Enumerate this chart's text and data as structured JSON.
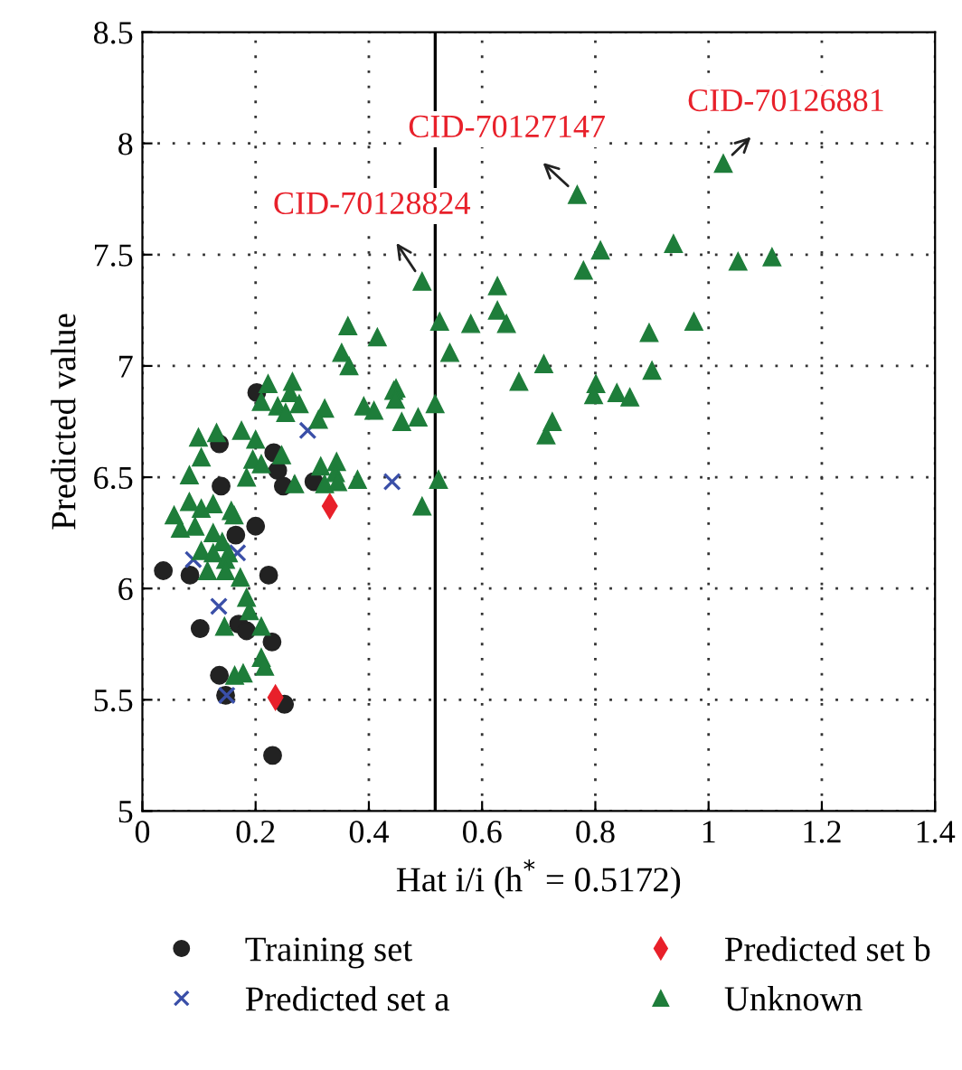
{
  "chart_data": {
    "type": "scatter",
    "xlabel": "Hat i/i (h$^{*}$ = 0.5172)",
    "ylabel": "Predicted value",
    "xlim": [
      0,
      1.4
    ],
    "xticks": [
      0,
      0.2,
      0.4,
      0.6,
      0.8,
      1,
      1.2,
      1.4
    ],
    "ylim": [
      5,
      8.5
    ],
    "yticks": [
      5,
      5.5,
      6,
      6.5,
      7,
      7.5,
      8,
      8.5
    ],
    "grid": true,
    "legend": "bottom",
    "ref_lines": [
      {
        "axis": "x",
        "value": 0.5172,
        "color": "#000000",
        "line_style": "solid"
      }
    ],
    "annotations": [
      {
        "text": "CID-70128824",
        "x": 0.494,
        "y": 7.38
      },
      {
        "text": "CID-70127147",
        "x": 0.768,
        "y": 7.77
      },
      {
        "text": "CID-70126881",
        "x": 1.026,
        "y": 7.91
      }
    ],
    "series": [
      {
        "name": "Training set",
        "color": "#222222",
        "marker": "circle",
        "x": [
          0.037,
          0.084,
          0.223,
          0.102,
          0.17,
          0.184,
          0.229,
          0.136,
          0.147,
          0.251,
          0.23,
          0.2,
          0.165,
          0.139,
          0.239,
          0.249,
          0.303,
          0.136,
          0.202,
          0.232
        ],
        "values": [
          6.08,
          6.06,
          6.06,
          5.82,
          5.84,
          5.81,
          5.76,
          5.61,
          5.52,
          5.48,
          5.25,
          6.28,
          6.24,
          6.46,
          6.53,
          6.46,
          6.48,
          6.65,
          6.88,
          6.61
        ]
      },
      {
        "name": "Predicted set a",
        "color": "#3a4fa8",
        "marker": "cross",
        "x": [
          0.09,
          0.168,
          0.135,
          0.149,
          0.292,
          0.441
        ],
        "values": [
          6.13,
          6.16,
          5.92,
          5.52,
          6.71,
          6.48
        ]
      },
      {
        "name": "Predicted set b",
        "color": "#e8202a",
        "marker": "diamond",
        "x": [
          0.331,
          0.235
        ],
        "values": [
          6.37,
          5.51
        ]
      },
      {
        "name": "Unknown",
        "color": "#1e7d3a",
        "marker": "triangle",
        "x": [
          1.026,
          0.768,
          0.494,
          0.809,
          0.938,
          0.779,
          1.052,
          1.112,
          0.627,
          0.363,
          0.415,
          0.352,
          0.365,
          0.525,
          0.543,
          0.58,
          0.627,
          0.643,
          0.895,
          0.974,
          0.709,
          0.9,
          0.448,
          0.665,
          0.222,
          0.265,
          0.801,
          0.797,
          0.838,
          0.861,
          0.517,
          0.724,
          0.713,
          0.523,
          0.494,
          0.261,
          0.21,
          0.239,
          0.277,
          0.253,
          0.322,
          0.444,
          0.447,
          0.391,
          0.409,
          0.458,
          0.487,
          0.311,
          0.175,
          0.2,
          0.246,
          0.195,
          0.21,
          0.184,
          0.315,
          0.343,
          0.341,
          0.322,
          0.345,
          0.38,
          0.269,
          0.162,
          0.173,
          0.184,
          0.189,
          0.21,
          0.21,
          0.216,
          0.178,
          0.104,
          0.083,
          0.056,
          0.067,
          0.083,
          0.104,
          0.125,
          0.157,
          0.093,
          0.125,
          0.141,
          0.104,
          0.125,
          0.152,
          0.147,
          0.115,
          0.147,
          0.145,
          0.163,
          0.099,
          0.131
        ],
        "values": [
          7.91,
          7.77,
          7.38,
          7.52,
          7.55,
          7.43,
          7.47,
          7.49,
          7.36,
          7.18,
          7.13,
          7.06,
          7.0,
          7.2,
          7.06,
          7.19,
          7.25,
          7.19,
          7.15,
          7.2,
          7.01,
          6.98,
          6.9,
          6.93,
          6.92,
          6.93,
          6.92,
          6.87,
          6.88,
          6.86,
          6.83,
          6.75,
          6.69,
          6.49,
          6.37,
          6.88,
          6.84,
          6.82,
          6.83,
          6.79,
          6.81,
          6.89,
          6.85,
          6.82,
          6.8,
          6.75,
          6.77,
          6.76,
          6.71,
          6.67,
          6.6,
          6.58,
          6.56,
          6.5,
          6.55,
          6.57,
          6.52,
          6.47,
          6.48,
          6.49,
          6.47,
          6.33,
          6.05,
          5.96,
          5.9,
          5.83,
          5.69,
          5.65,
          5.62,
          6.59,
          6.51,
          6.33,
          6.27,
          6.39,
          6.36,
          6.38,
          6.35,
          6.28,
          6.25,
          6.21,
          6.17,
          6.16,
          6.16,
          6.13,
          6.08,
          6.08,
          5.83,
          5.61,
          6.68,
          6.7
        ]
      }
    ]
  }
}
